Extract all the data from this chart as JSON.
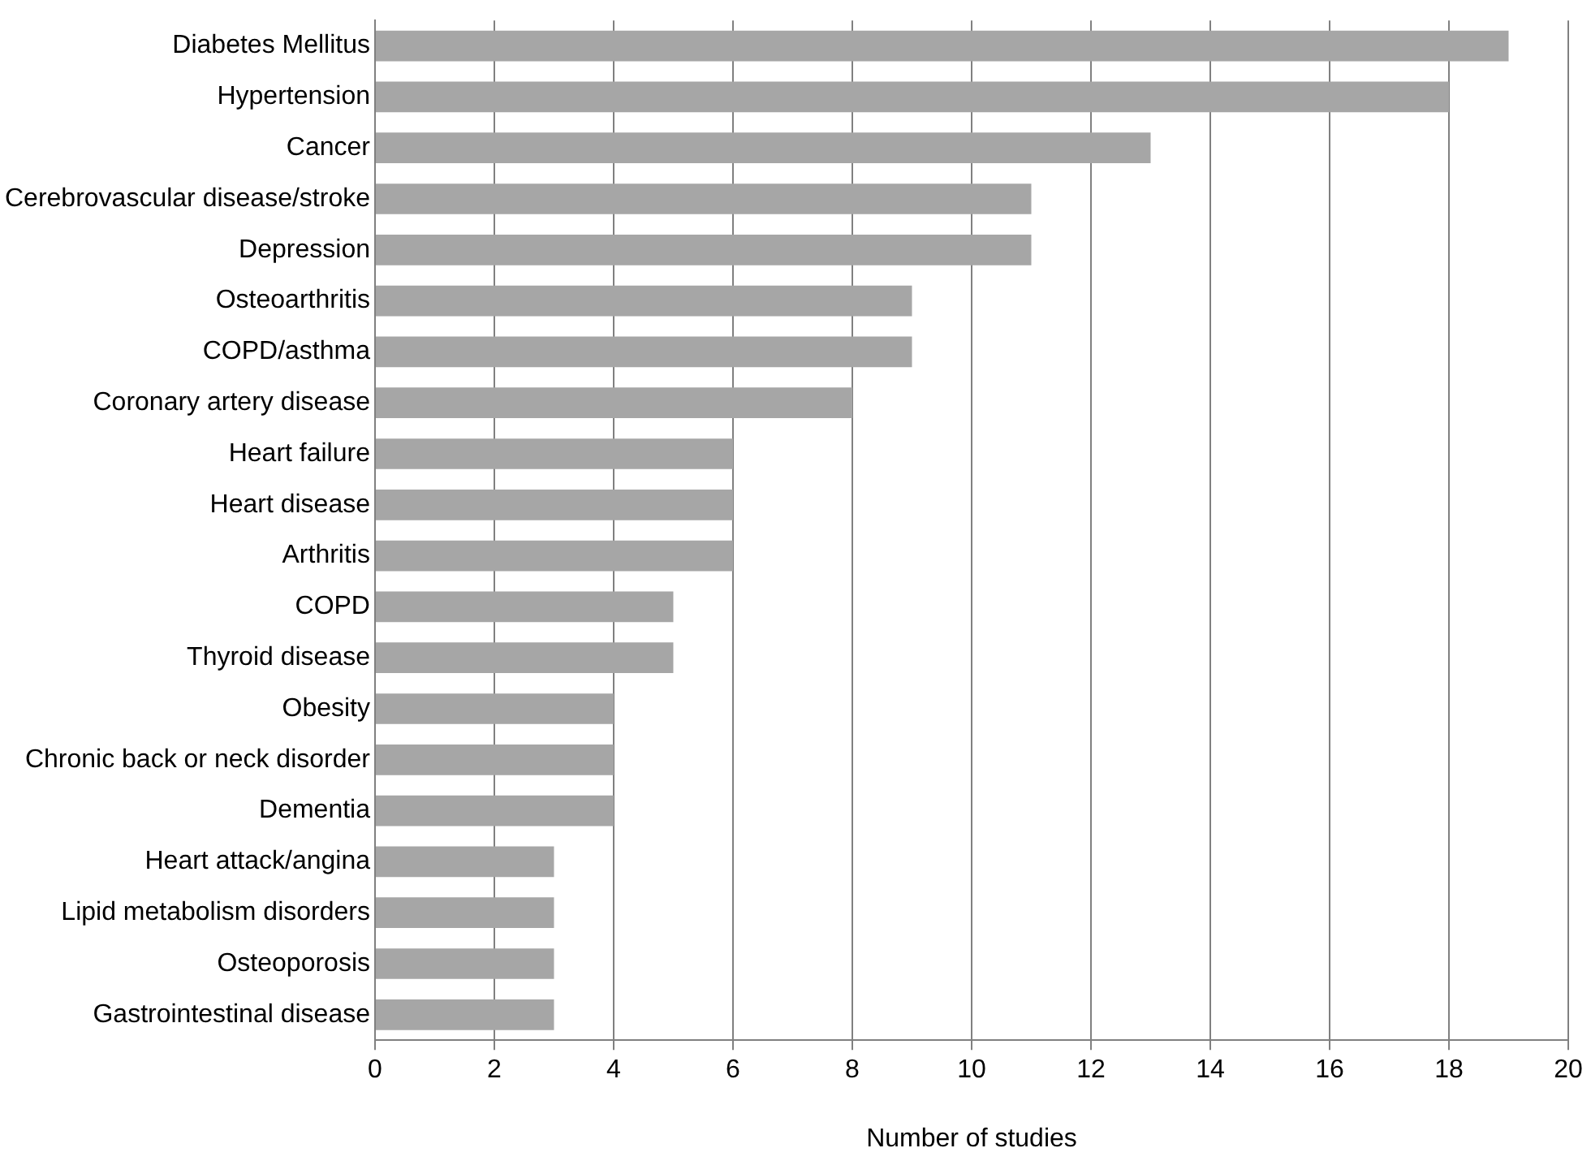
{
  "chart_data": {
    "type": "bar",
    "orientation": "horizontal",
    "xlabel": "Number of studies",
    "categories": [
      "Diabetes Mellitus",
      "Hypertension",
      "Cancer",
      "Cerebrovascular disease/stroke",
      "Depression",
      "Osteoarthritis",
      "COPD/asthma",
      "Coronary artery disease",
      "Heart failure",
      "Heart disease",
      "Arthritis",
      "COPD",
      "Thyroid disease",
      "Obesity",
      "Chronic back or neck disorder",
      "Dementia",
      "Heart attack/angina",
      "Lipid metabolism disorders",
      "Osteoporosis",
      "Gastrointestinal disease"
    ],
    "values": [
      19,
      18,
      13,
      11,
      11,
      9,
      9,
      8,
      6,
      6,
      6,
      5,
      5,
      4,
      4,
      4,
      3,
      3,
      3,
      3
    ],
    "color": "#a6a6a6",
    "xlim": [
      0,
      20
    ],
    "xticks": [
      0,
      2,
      4,
      6,
      8,
      10,
      12,
      14,
      16,
      18,
      20
    ],
    "grid": "x",
    "legend": false
  }
}
